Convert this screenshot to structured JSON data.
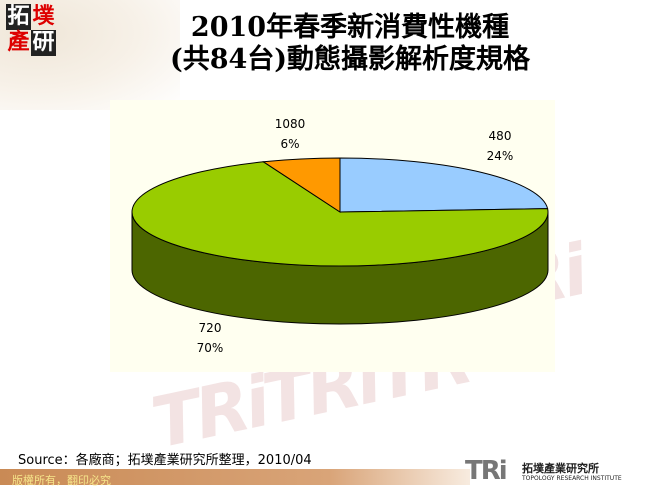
{
  "title_line1": "2010年春季新消費性機種",
  "title_line2": "(共84台)動態攝影解析度規格",
  "logo_chars": [
    "拓",
    "墣",
    "產",
    "研"
  ],
  "chart_data": {
    "type": "pie",
    "style": "3d",
    "categories": [
      "480",
      "720",
      "1080"
    ],
    "values": [
      24,
      70,
      6
    ],
    "value_labels": [
      "24%",
      "70%",
      "6%"
    ],
    "colors": [
      "#99CCFF",
      "#99CC00",
      "#FF9900"
    ],
    "side_color": "#4C6600",
    "legend": "none"
  },
  "source": "Source：各廠商；拓墣產業研究所整理，2010/04",
  "footer": "版權所有，翻印必究",
  "brand": {
    "mark": "TRi",
    "name_cn": "拓墣產業研究所",
    "name_en": "TOPOLOGY RESEARCH INSTITUTE"
  }
}
